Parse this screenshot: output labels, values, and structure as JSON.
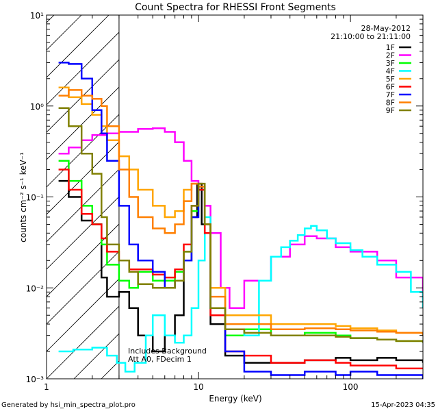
{
  "chart_data": {
    "type": "line",
    "title": "Count Spectra for RHESSI Front Segments",
    "xlabel": "Energy (keV)",
    "ylabel": "counts cm⁻² s⁻¹ keV⁻¹",
    "x_scale": "log",
    "y_scale": "log",
    "xlim": [
      1.0,
      300.0
    ],
    "ylim": [
      0.001,
      10.0
    ],
    "x_tick_labels": [
      "1",
      "10",
      "100"
    ],
    "y_tick_labels": [
      "10⁻³",
      "10⁻²",
      "10⁻¹",
      "10⁰",
      "10¹"
    ],
    "date": "28-May-2012",
    "time_range": "21:10:00 to 21:11:00",
    "annotation_lines": [
      "Includes Background",
      "Att A0, FDecim 1"
    ],
    "hatched_region": [
      1.0,
      3.0
    ],
    "footer_left": "Generated by hsi_min_spectra_plot.pro",
    "footer_right": "15-Apr-2023 04:35",
    "legend_position": "top-right",
    "series": [
      {
        "name": "1F",
        "color": "#000000",
        "x": [
          1.2,
          1.4,
          1.7,
          2.0,
          2.3,
          2.5,
          3.0,
          3.5,
          4.0,
          5.0,
          6.0,
          7.0,
          8.0,
          9.0,
          9.8,
          10.5,
          12.0,
          15.0,
          20.0,
          30.0,
          50.0,
          80.0,
          100.0,
          150.0,
          200.0,
          300.0
        ],
        "y": [
          0.15,
          0.1,
          0.055,
          0.05,
          0.013,
          0.008,
          0.009,
          0.006,
          0.003,
          0.002,
          0.003,
          0.005,
          0.02,
          0.06,
          0.14,
          0.05,
          0.004,
          0.0018,
          0.0015,
          0.0015,
          0.0016,
          0.0017,
          0.0016,
          0.0017,
          0.0016,
          0.0015
        ]
      },
      {
        "name": "2F",
        "color": "#ff00ff",
        "x": [
          1.2,
          1.4,
          1.7,
          2.0,
          2.5,
          3.0,
          4.0,
          5.0,
          6.0,
          7.0,
          8.0,
          9.0,
          10.0,
          11.0,
          12.0,
          14.0,
          16.0,
          20.0,
          30.0,
          40.0,
          50.0,
          60.0,
          80.0,
          100.0,
          150.0,
          200.0,
          300.0
        ],
        "y": [
          0.3,
          0.35,
          0.42,
          0.48,
          0.5,
          0.52,
          0.56,
          0.57,
          0.52,
          0.4,
          0.25,
          0.15,
          0.12,
          0.08,
          0.04,
          0.01,
          0.006,
          0.012,
          0.022,
          0.03,
          0.037,
          0.035,
          0.028,
          0.025,
          0.02,
          0.013,
          0.0075
        ]
      },
      {
        "name": "3F",
        "color": "#00ff00",
        "x": [
          1.2,
          1.4,
          1.7,
          2.0,
          2.3,
          2.5,
          3.0,
          3.5,
          4.0,
          5.0,
          6.0,
          7.0,
          8.0,
          9.0,
          10.0,
          11.0,
          12.0,
          15.0,
          20.0,
          30.0,
          50.0,
          80.0,
          100.0,
          150.0,
          200.0,
          300.0
        ],
        "y": [
          0.25,
          0.15,
          0.08,
          0.05,
          0.03,
          0.018,
          0.012,
          0.01,
          0.015,
          0.012,
          0.012,
          0.015,
          0.025,
          0.07,
          0.12,
          0.04,
          0.006,
          0.003,
          0.0035,
          0.003,
          0.0032,
          0.003,
          0.0028,
          0.0027,
          0.0026,
          0.0025
        ]
      },
      {
        "name": "4F",
        "color": "#00ffff",
        "x": [
          1.2,
          1.5,
          2.0,
          2.5,
          2.9,
          3.3,
          3.8,
          4.5,
          5.0,
          6.0,
          7.0,
          8.0,
          9.0,
          10.0,
          11.0,
          12.0,
          15.0,
          20.0,
          25.0,
          30.0,
          35.0,
          40.0,
          45.0,
          50.0,
          55.0,
          60.0,
          70.0,
          80.0,
          100.0,
          120.0,
          150.0,
          200.0,
          250.0,
          300.0
        ],
        "y": [
          0.002,
          0.0021,
          0.0022,
          0.0018,
          0.0015,
          0.0012,
          0.0015,
          0.003,
          0.005,
          0.003,
          0.0025,
          0.003,
          0.006,
          0.02,
          0.06,
          0.01,
          0.0035,
          0.003,
          0.012,
          0.022,
          0.028,
          0.033,
          0.038,
          0.045,
          0.048,
          0.043,
          0.035,
          0.031,
          0.026,
          0.022,
          0.018,
          0.015,
          0.009,
          0.006
        ]
      },
      {
        "name": "5F",
        "color": "#ffa500",
        "x": [
          1.2,
          1.4,
          1.7,
          2.0,
          2.3,
          2.5,
          3.0,
          3.5,
          4.0,
          5.0,
          6.0,
          7.0,
          8.0,
          9.0,
          10.0,
          11.0,
          12.0,
          15.0,
          20.0,
          30.0,
          50.0,
          80.0,
          100.0,
          150.0,
          200.0,
          300.0
        ],
        "y": [
          1.6,
          1.25,
          1.05,
          0.8,
          0.6,
          0.42,
          0.28,
          0.2,
          0.12,
          0.08,
          0.06,
          0.07,
          0.12,
          0.14,
          0.13,
          0.05,
          0.01,
          0.005,
          0.005,
          0.004,
          0.004,
          0.0038,
          0.0036,
          0.0034,
          0.0032,
          0.003
        ]
      },
      {
        "name": "6F",
        "color": "#ff0000",
        "x": [
          1.2,
          1.4,
          1.7,
          2.0,
          2.3,
          2.5,
          3.0,
          3.5,
          4.0,
          5.0,
          6.0,
          7.0,
          8.0,
          9.0,
          10.0,
          11.0,
          12.0,
          15.0,
          20.0,
          30.0,
          50.0,
          80.0,
          100.0,
          150.0,
          200.0,
          300.0
        ],
        "y": [
          0.2,
          0.12,
          0.065,
          0.05,
          0.035,
          0.025,
          0.02,
          0.016,
          0.016,
          0.014,
          0.013,
          0.016,
          0.03,
          0.08,
          0.12,
          0.04,
          0.005,
          0.002,
          0.0018,
          0.0015,
          0.0016,
          0.0015,
          0.0014,
          0.0014,
          0.0013,
          0.0013
        ]
      },
      {
        "name": "7F",
        "color": "#0000ff",
        "x": [
          1.2,
          1.4,
          1.7,
          2.0,
          2.3,
          2.5,
          3.0,
          3.5,
          4.0,
          5.0,
          6.0,
          7.0,
          8.0,
          9.0,
          10.0,
          11.0,
          12.0,
          15.0,
          20.0,
          30.0,
          50.0,
          80.0,
          100.0,
          150.0,
          200.0,
          300.0
        ],
        "y": [
          3.0,
          2.9,
          2.0,
          0.9,
          0.5,
          0.25,
          0.08,
          0.03,
          0.02,
          0.015,
          0.01,
          0.012,
          0.02,
          0.06,
          0.13,
          0.05,
          0.006,
          0.002,
          0.0012,
          0.0011,
          0.0012,
          0.0011,
          0.0012,
          0.0011,
          0.0011,
          0.001
        ]
      },
      {
        "name": "8F",
        "color": "#ff7f00",
        "x": [
          1.2,
          1.4,
          1.7,
          2.0,
          2.3,
          2.5,
          3.0,
          3.5,
          4.0,
          5.0,
          6.0,
          7.0,
          8.0,
          9.0,
          10.0,
          11.0,
          12.0,
          15.0,
          20.0,
          30.0,
          50.0,
          80.0,
          100.0,
          150.0,
          200.0,
          300.0
        ],
        "y": [
          1.3,
          1.5,
          1.3,
          1.2,
          1.0,
          0.6,
          0.2,
          0.1,
          0.06,
          0.045,
          0.04,
          0.05,
          0.09,
          0.14,
          0.13,
          0.05,
          0.008,
          0.004,
          0.004,
          0.0035,
          0.0036,
          0.0035,
          0.0034,
          0.0033,
          0.0032,
          0.003
        ]
      },
      {
        "name": "9F",
        "color": "#808000",
        "x": [
          1.2,
          1.4,
          1.7,
          2.0,
          2.3,
          2.5,
          3.0,
          3.5,
          4.0,
          5.0,
          6.0,
          7.0,
          8.0,
          9.0,
          10.0,
          11.0,
          12.0,
          15.0,
          20.0,
          30.0,
          50.0,
          80.0,
          100.0,
          150.0,
          200.0,
          300.0
        ],
        "y": [
          0.95,
          0.6,
          0.3,
          0.18,
          0.06,
          0.03,
          0.02,
          0.015,
          0.011,
          0.01,
          0.01,
          0.012,
          0.025,
          0.08,
          0.14,
          0.05,
          0.006,
          0.0035,
          0.0032,
          0.003,
          0.003,
          0.0029,
          0.0028,
          0.0027,
          0.0026,
          0.0025
        ]
      }
    ]
  }
}
